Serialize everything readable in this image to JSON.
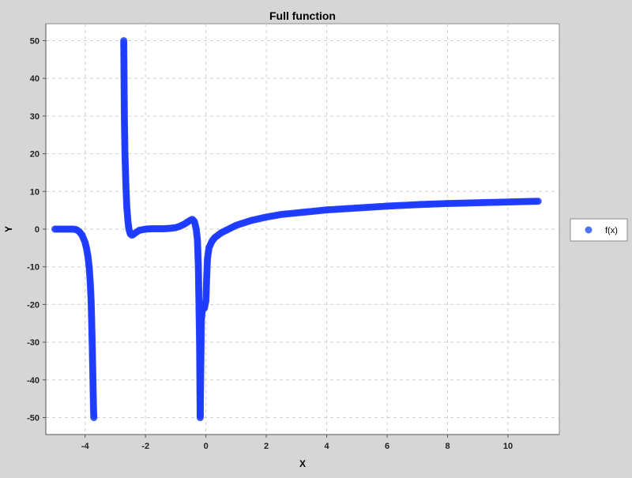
{
  "chart_data": {
    "type": "scatter",
    "title": "Full function",
    "xlabel": "X",
    "ylabel": "Y",
    "xlim": [
      -5.3,
      11.7
    ],
    "ylim": [
      -54.5,
      54.5
    ],
    "x_ticks": [
      -4,
      -2,
      0,
      2,
      4,
      6,
      8,
      10
    ],
    "y_ticks": [
      -50,
      -40,
      -30,
      -20,
      -10,
      0,
      10,
      20,
      30,
      40,
      50
    ],
    "grid": true,
    "legend_position": "right",
    "series": [
      {
        "name": "f(x)",
        "color": "#1f3cff",
        "points": [
          [
            -5.0,
            0.0
          ],
          [
            -4.8,
            0.0
          ],
          [
            -4.6,
            0.0
          ],
          [
            -4.4,
            0.0
          ],
          [
            -4.3,
            -0.1
          ],
          [
            -4.2,
            -0.6
          ],
          [
            -4.1,
            -1.6
          ],
          [
            -4.0,
            -3.5
          ],
          [
            -3.95,
            -5.2
          ],
          [
            -3.9,
            -7.5
          ],
          [
            -3.86,
            -10.5
          ],
          [
            -3.83,
            -14.0
          ],
          [
            -3.8,
            -19.0
          ],
          [
            -3.78,
            -25.0
          ],
          [
            -3.76,
            -32.0
          ],
          [
            -3.74,
            -40.0
          ],
          [
            -3.72,
            -48.0
          ],
          [
            -3.71,
            -50.0
          ],
          [
            -2.72,
            50.0
          ],
          [
            -2.71,
            40.0
          ],
          [
            -2.7,
            30.0
          ],
          [
            -2.68,
            20.0
          ],
          [
            -2.65,
            12.0
          ],
          [
            -2.62,
            6.0
          ],
          [
            -2.58,
            2.0
          ],
          [
            -2.55,
            0.0
          ],
          [
            -2.5,
            -1.3
          ],
          [
            -2.45,
            -1.6
          ],
          [
            -2.4,
            -1.4
          ],
          [
            -2.3,
            -0.8
          ],
          [
            -2.2,
            -0.3
          ],
          [
            -2.0,
            0.0
          ],
          [
            -1.8,
            0.1
          ],
          [
            -1.6,
            0.1
          ],
          [
            -1.4,
            0.1
          ],
          [
            -1.2,
            0.2
          ],
          [
            -1.0,
            0.4
          ],
          [
            -0.85,
            0.8
          ],
          [
            -0.7,
            1.4
          ],
          [
            -0.55,
            2.2
          ],
          [
            -0.45,
            2.6
          ],
          [
            -0.38,
            2.0
          ],
          [
            -0.32,
            0.0
          ],
          [
            -0.28,
            -3.0
          ],
          [
            -0.25,
            -10.0
          ],
          [
            -0.23,
            -20.0
          ],
          [
            -0.21,
            -30.0
          ],
          [
            -0.2,
            -40.0
          ],
          [
            -0.19,
            -50.0
          ],
          [
            -0.15,
            -24.0
          ],
          [
            -0.1,
            -20.0
          ],
          [
            -0.05,
            -21.0
          ],
          [
            0.0,
            -19.0
          ],
          [
            0.02,
            -14.0
          ],
          [
            0.05,
            -8.0
          ],
          [
            0.1,
            -5.0
          ],
          [
            0.2,
            -3.2
          ],
          [
            0.3,
            -2.2
          ],
          [
            0.5,
            -1.0
          ],
          [
            0.75,
            0.0
          ],
          [
            1.0,
            1.0
          ],
          [
            1.5,
            2.3
          ],
          [
            2.0,
            3.2
          ],
          [
            2.5,
            3.9
          ],
          [
            3.0,
            4.3
          ],
          [
            4.0,
            5.1
          ],
          [
            5.0,
            5.6
          ],
          [
            6.0,
            6.1
          ],
          [
            7.0,
            6.5
          ],
          [
            8.0,
            6.8
          ],
          [
            9.0,
            7.0
          ],
          [
            10.0,
            7.2
          ],
          [
            11.0,
            7.4
          ]
        ]
      }
    ]
  }
}
